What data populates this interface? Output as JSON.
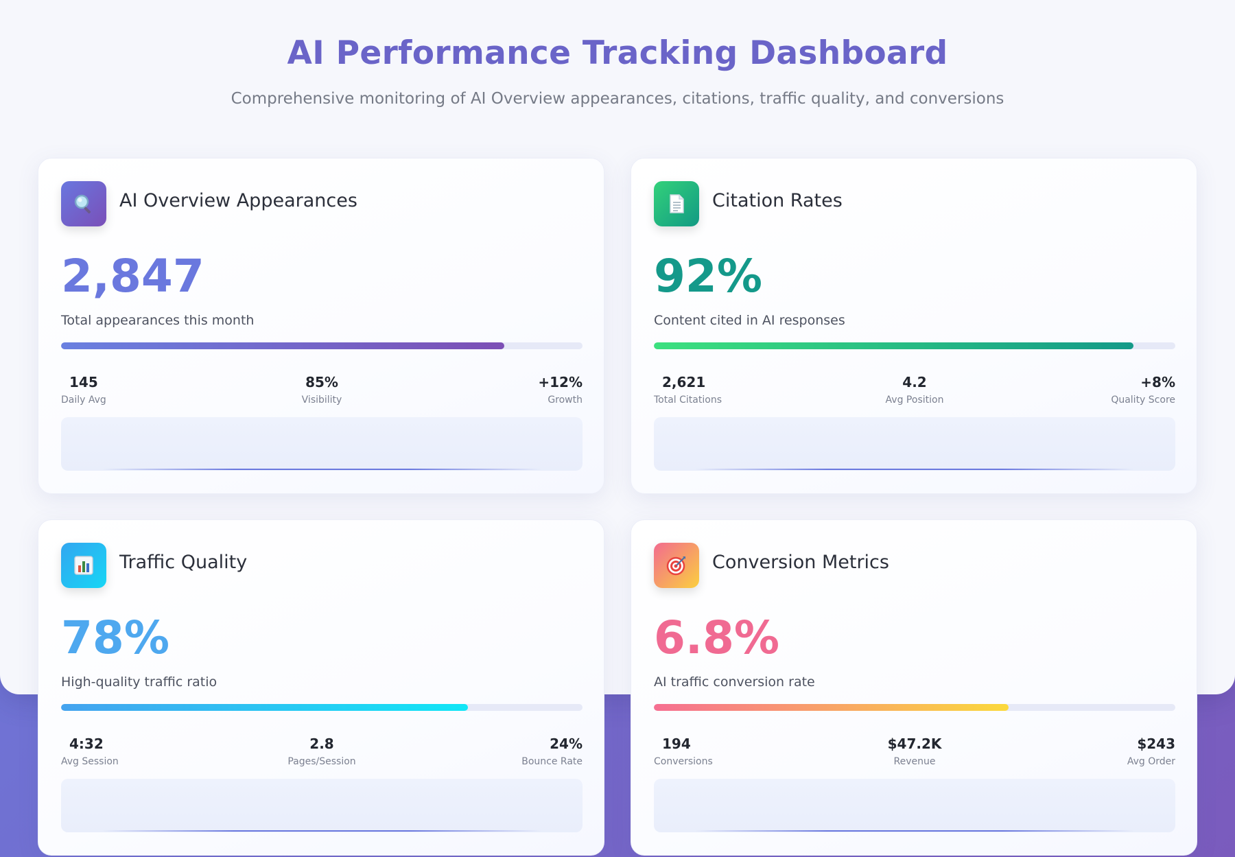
{
  "header": {
    "title": "AI Performance Tracking Dashboard",
    "subtitle": "Comprehensive monitoring of AI Overview appearances, citations, traffic quality, and conversions"
  },
  "cards": [
    {
      "title": "AI Overview Appearances",
      "icon": "magnifying-glass-icon",
      "metric": "2,847",
      "description": "Total appearances this month",
      "progress": 0.85,
      "stats": [
        {
          "value": "145",
          "label": "Daily Avg"
        },
        {
          "value": "85%",
          "label": "Visibility"
        },
        {
          "value": "+12%",
          "label": "Growth"
        }
      ]
    },
    {
      "title": "Citation Rates",
      "icon": "document-icon",
      "metric": "92%",
      "description": "Content cited in AI responses",
      "progress": 0.92,
      "stats": [
        {
          "value": "2,621",
          "label": "Total Citations"
        },
        {
          "value": "4.2",
          "label": "Avg Position"
        },
        {
          "value": "+8%",
          "label": "Quality Score"
        }
      ]
    },
    {
      "title": "Traffic Quality",
      "icon": "bar-chart-icon",
      "metric": "78%",
      "description": "High-quality traffic ratio",
      "progress": 0.78,
      "stats": [
        {
          "value": "4:32",
          "label": "Avg Session"
        },
        {
          "value": "2.8",
          "label": "Pages/Session"
        },
        {
          "value": "24%",
          "label": "Bounce Rate"
        }
      ]
    },
    {
      "title": "Conversion Metrics",
      "icon": "target-icon",
      "metric": "6.8%",
      "description": "AI traffic conversion rate",
      "progress": 0.68,
      "stats": [
        {
          "value": "194",
          "label": "Conversions"
        },
        {
          "value": "$47.2K",
          "label": "Revenue"
        },
        {
          "value": "$243",
          "label": "Avg Order"
        }
      ]
    }
  ],
  "colors": {
    "title_accent": "#6a64c8",
    "purple": "#6a78de",
    "teal": "#14998a",
    "blue": "#4ea8ef",
    "pink": "#f06a92",
    "background_gradient_start": "#6a7fe0",
    "background_gradient_end": "#7a5bbd"
  }
}
